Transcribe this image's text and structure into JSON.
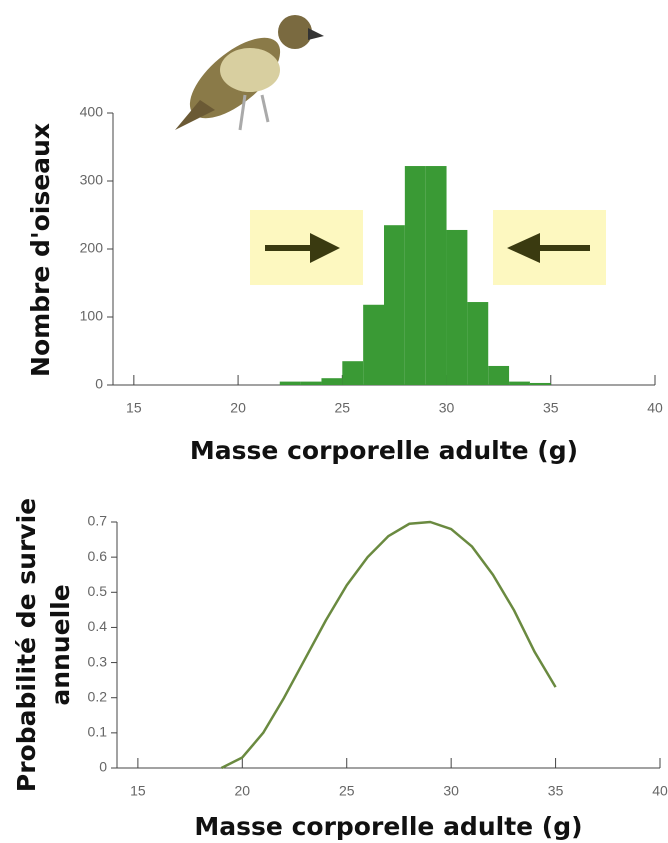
{
  "chart_data": [
    {
      "type": "histogram",
      "ylabel": "Nombre d'oiseaux",
      "xlabel": "Masse corporelle adulte (g)",
      "bins": [
        22,
        23,
        24,
        25,
        26,
        27,
        28,
        29,
        30,
        31,
        32,
        33,
        34,
        35
      ],
      "values": [
        5,
        5,
        10,
        35,
        118,
        235,
        322,
        322,
        228,
        122,
        28,
        5,
        3
      ],
      "color": "#3a9a35",
      "xlim": [
        14,
        40
      ],
      "xticks": [
        15,
        20,
        25,
        30,
        35,
        40
      ],
      "ylim": [
        0,
        400
      ],
      "yticks": [
        0,
        100,
        200,
        300,
        400
      ]
    },
    {
      "type": "line",
      "ylabel": [
        "Probabilité de survie",
        "annuelle"
      ],
      "xlabel": "Masse corporelle adulte (g)",
      "x": [
        19,
        20,
        21,
        22,
        23,
        24,
        25,
        26,
        27,
        28,
        29,
        30,
        31,
        32,
        33,
        34,
        35
      ],
      "values": [
        0,
        0.03,
        0.1,
        0.2,
        0.31,
        0.42,
        0.52,
        0.6,
        0.66,
        0.695,
        0.7,
        0.68,
        0.63,
        0.55,
        0.45,
        0.33,
        0.23
      ],
      "color": "#6a8a40",
      "xlim": [
        14,
        40
      ],
      "xticks": [
        15,
        20,
        25,
        30,
        35,
        40
      ],
      "ylim": [
        0,
        0.7
      ],
      "yticks": [
        0,
        0.1,
        0.2,
        0.3,
        0.4,
        0.5,
        0.6,
        0.7
      ]
    }
  ]
}
